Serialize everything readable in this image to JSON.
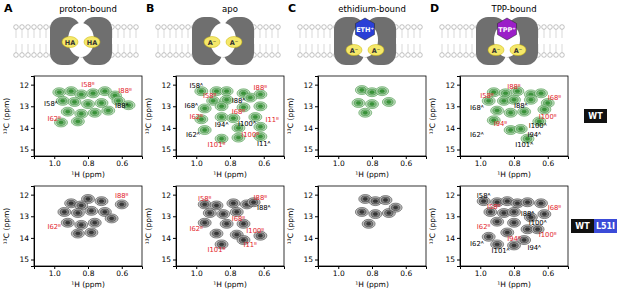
{
  "figure": {
    "columns": [
      {
        "letter": "A",
        "title": "proton-bound",
        "sites": [
          "HA",
          "HA"
        ]
      },
      {
        "letter": "B",
        "title": "apo",
        "sites": [
          "A⁻",
          "A⁻"
        ]
      },
      {
        "letter": "C",
        "title": "ethidium-bound",
        "ligand": "ETH⁺",
        "sites": [
          "A⁻",
          "A⁻"
        ]
      },
      {
        "letter": "D",
        "title": "TPP-bound",
        "ligand": "TPP⁺",
        "sites": [
          "A⁻",
          "A⁻"
        ]
      }
    ],
    "rows": [
      {
        "labels": [
          "WT"
        ]
      },
      {
        "labels": [
          "WT",
          "L51I"
        ]
      }
    ]
  },
  "chart_data": [
    {
      "type": "scatter",
      "xlabel": "¹H (ppm)",
      "ylabel": "¹³C (ppm)",
      "xlim": [
        1.12,
        0.48
      ],
      "ylim": [
        11.6,
        15.3
      ],
      "xticks": [
        {
          "value": 1,
          "label": "1.0"
        },
        0.8,
        0.6
      ],
      "yticks": [
        12,
        13,
        14,
        15
      ],
      "series": [
        {
          "color": "#2e8b2e",
          "marker": "contour",
          "x": [
            0.97,
            0.9,
            0.84,
            0.77,
            0.7,
            0.64,
            0.95,
            0.88,
            0.8,
            0.72,
            0.62,
            0.92,
            0.84,
            0.76,
            0.68,
            0.56,
            0.96,
            0.86
          ],
          "values": [
            12.35,
            12.3,
            12.45,
            12.4,
            12.3,
            12.5,
            12.75,
            12.8,
            12.9,
            12.85,
            12.75,
            13.25,
            13.35,
            13.3,
            13.2,
            12.95,
            13.75,
            13.7
          ]
        }
      ],
      "annotations": [
        {
          "text": "I58ᴮ",
          "x": 0.8,
          "y": 12.0,
          "color": "#e3242b"
        },
        {
          "text": "I88ᴮ",
          "x": 0.58,
          "y": 12.25,
          "color": "#e3242b"
        },
        {
          "text": "I58ᴬ",
          "x": 1.02,
          "y": 12.85,
          "color": "#000000"
        },
        {
          "text": "I88ᴬ",
          "x": 0.6,
          "y": 12.95,
          "color": "#000000"
        },
        {
          "text": "I62ᴮ",
          "x": 1.0,
          "y": 13.55,
          "color": "#e3242b"
        }
      ]
    },
    {
      "type": "scatter",
      "xlabel": "¹H (ppm)",
      "ylabel": "¹³C (ppm)",
      "xlim": [
        1.12,
        0.48
      ],
      "ylim": [
        11.6,
        15.3
      ],
      "xticks": [
        {
          "value": 1,
          "label": "1.0"
        },
        0.8,
        0.6
      ],
      "yticks": [
        12,
        13,
        14,
        15
      ],
      "series": [
        {
          "color": "#2e8b2e",
          "marker": "contour",
          "x": [
            0.97,
            0.88,
            0.82,
            0.72,
            0.62,
            0.9,
            0.82,
            0.68,
            0.95,
            0.85,
            0.72,
            0.62,
            0.97,
            0.85,
            0.78,
            0.65,
            0.75,
            0.62,
            0.95,
            0.75,
            0.85,
            0.62
          ],
          "values": [
            12.3,
            12.3,
            12.3,
            12.4,
            12.45,
            12.75,
            12.7,
            12.6,
            13.1,
            13.0,
            13.05,
            13.0,
            13.6,
            13.5,
            13.55,
            13.5,
            14.0,
            13.95,
            14.1,
            14.45,
            14.5,
            14.4
          ]
        }
      ],
      "annotations": [
        {
          "text": "I58ᴬ",
          "x": 1.0,
          "y": 12.05,
          "color": "#000000"
        },
        {
          "text": "I88ᴮ",
          "x": 0.62,
          "y": 12.15,
          "color": "#e3242b"
        },
        {
          "text": "I58ᴮ",
          "x": 0.92,
          "y": 12.5,
          "color": "#e3242b"
        },
        {
          "text": "I88ᴬ",
          "x": 0.75,
          "y": 12.75,
          "color": "#000000"
        },
        {
          "text": "I68ᴬ",
          "x": 1.03,
          "y": 12.95,
          "color": "#000000"
        },
        {
          "text": "I68ᴮ",
          "x": 0.75,
          "y": 13.25,
          "color": "#e3242b"
        },
        {
          "text": "I62ᴮ",
          "x": 1.0,
          "y": 13.45,
          "color": "#e3242b"
        },
        {
          "text": "I94ᴬ",
          "x": 0.85,
          "y": 13.85,
          "color": "#000000"
        },
        {
          "text": "I100ᴬ",
          "x": 0.7,
          "y": 13.8,
          "color": "#000000"
        },
        {
          "text": "I11ᴮ",
          "x": 0.55,
          "y": 13.6,
          "color": "#e3242b"
        },
        {
          "text": "I62ᴬ",
          "x": 1.02,
          "y": 14.3,
          "color": "#000000"
        },
        {
          "text": "I100ᴮ",
          "x": 0.68,
          "y": 14.3,
          "color": "#e3242b"
        },
        {
          "text": "I101ᴮ",
          "x": 0.88,
          "y": 14.75,
          "color": "#e3242b"
        },
        {
          "text": "I11ᴬ",
          "x": 0.6,
          "y": 14.7,
          "color": "#000000"
        }
      ]
    },
    {
      "type": "scatter",
      "xlabel": "¹H (ppm)",
      "ylabel": "¹³C (ppm)",
      "xlim": [
        1.12,
        0.48
      ],
      "ylim": [
        11.6,
        15.3
      ],
      "xticks": [
        {
          "value": 1,
          "label": "1.0"
        },
        0.8,
        0.6
      ],
      "yticks": [
        12,
        13,
        14,
        15
      ],
      "series": [
        {
          "color": "#2e8b2e",
          "marker": "contour",
          "x": [
            0.86,
            0.8,
            0.74,
            0.88,
            0.8,
            0.7,
            0.84
          ],
          "values": [
            12.25,
            12.35,
            12.3,
            12.85,
            12.9,
            12.8,
            13.3
          ]
        }
      ]
    },
    {
      "type": "scatter",
      "xlabel": "¹H (ppm)",
      "ylabel": "¹³C (ppm)",
      "xlim": [
        1.12,
        0.48
      ],
      "ylim": [
        11.6,
        15.3
      ],
      "xticks": [
        {
          "value": 1,
          "label": "1.0"
        },
        0.8,
        0.6
      ],
      "yticks": [
        12,
        13,
        14,
        15
      ],
      "series": [
        {
          "color": "#2e8b2e",
          "marker": "contour",
          "x": [
            0.92,
            0.85,
            0.78,
            0.7,
            0.64,
            0.6,
            0.95,
            0.86,
            0.8,
            0.7,
            0.62,
            0.9,
            0.82,
            0.74,
            0.65,
            0.92,
            0.82,
            0.76,
            0.72
          ],
          "values": [
            12.35,
            12.4,
            12.3,
            12.45,
            12.4,
            12.85,
            12.75,
            12.75,
            12.7,
            12.7,
            13.15,
            13.2,
            13.3,
            13.25,
            13.7,
            13.65,
            14.1,
            14.05,
            14.5
          ]
        }
      ],
      "annotations": [
        {
          "text": "I88ᴮ",
          "x": 0.8,
          "y": 12.1,
          "color": "#e3242b"
        },
        {
          "text": "I58ᴮ",
          "x": 0.96,
          "y": 12.5,
          "color": "#e3242b"
        },
        {
          "text": "I68ᴮ",
          "x": 0.56,
          "y": 12.6,
          "color": "#e3242b"
        },
        {
          "text": "I88ᴬ",
          "x": 0.76,
          "y": 12.95,
          "color": "#000000"
        },
        {
          "text": "I68ᴬ",
          "x": 1.02,
          "y": 13.05,
          "color": "#000000"
        },
        {
          "text": "I100ᴮ",
          "x": 0.6,
          "y": 13.45,
          "color": "#e3242b"
        },
        {
          "text": "I94ᴮ",
          "x": 0.88,
          "y": 13.8,
          "color": "#e3242b"
        },
        {
          "text": "I100ᴬ",
          "x": 0.66,
          "y": 13.9,
          "color": "#000000"
        },
        {
          "text": "I62ᴬ",
          "x": 1.02,
          "y": 14.3,
          "color": "#000000"
        },
        {
          "text": "I94ᴬ",
          "x": 0.68,
          "y": 14.3,
          "color": "#000000"
        },
        {
          "text": "I101ᴬ",
          "x": 0.74,
          "y": 14.75,
          "color": "#000000"
        }
      ]
    },
    {
      "type": "scatter",
      "xlabel": "¹H (ppm)",
      "ylabel": "¹³C (ppm)",
      "xlim": [
        1.12,
        0.48
      ],
      "ylim": [
        11.6,
        15.3
      ],
      "xticks": [
        {
          "value": 1,
          "label": "1.0"
        },
        0.8,
        0.6
      ],
      "yticks": [
        12,
        13,
        14,
        15
      ],
      "series": [
        {
          "color": "#2b2b2b",
          "marker": "contour",
          "x": [
            0.8,
            0.72,
            0.9,
            0.84,
            0.94,
            0.86,
            0.78,
            0.7,
            0.92,
            0.84,
            0.76,
            0.66,
            0.6,
            0.86,
            0.78
          ],
          "values": [
            12.2,
            12.3,
            12.4,
            12.5,
            12.8,
            12.85,
            12.75,
            12.8,
            13.3,
            13.4,
            13.3,
            13.1,
            12.45,
            13.8,
            13.75
          ]
        }
      ],
      "annotations": [
        {
          "text": "I88ᴮ",
          "x": 0.6,
          "y": 12.05,
          "color": "#e3242b"
        },
        {
          "text": "I62ᴮ",
          "x": 1.0,
          "y": 13.45,
          "color": "#e3242b"
        }
      ]
    },
    {
      "type": "scatter",
      "xlabel": "¹H (ppm)",
      "ylabel": "¹³C (ppm)",
      "xlim": [
        1.12,
        0.48
      ],
      "ylim": [
        11.6,
        15.3
      ],
      "xticks": [
        {
          "value": 1,
          "label": "1.0"
        },
        0.8,
        0.6
      ],
      "yticks": [
        12,
        13,
        14,
        15
      ],
      "series": [
        {
          "color": "#2b2b2b",
          "marker": "contour",
          "x": [
            0.95,
            0.88,
            0.78,
            0.7,
            0.66,
            0.92,
            0.84,
            0.76,
            0.95,
            0.82,
            0.72,
            0.88,
            0.76,
            0.62,
            0.85,
            0.72
          ],
          "values": [
            12.45,
            12.5,
            12.4,
            12.45,
            12.35,
            12.85,
            12.9,
            12.8,
            13.3,
            13.35,
            13.35,
            13.8,
            13.85,
            13.9,
            14.3,
            14.1
          ]
        }
      ],
      "annotations": [
        {
          "text": "I58ᴮ",
          "x": 0.95,
          "y": 12.2,
          "color": "#e3242b"
        },
        {
          "text": "I88ᴮ",
          "x": 0.62,
          "y": 12.15,
          "color": "#e3242b"
        },
        {
          "text": "I88ᴬ",
          "x": 0.6,
          "y": 12.6,
          "color": "#000000"
        },
        {
          "text": "I68ᴮ",
          "x": 0.75,
          "y": 13.1,
          "color": "#e3242b"
        },
        {
          "text": "I62ᴮ",
          "x": 1.0,
          "y": 13.55,
          "color": "#e3242b"
        },
        {
          "text": "I100ᴮ",
          "x": 0.65,
          "y": 13.65,
          "color": "#e3242b"
        },
        {
          "text": "I11ᴮ",
          "x": 0.68,
          "y": 14.3,
          "color": "#e3242b"
        },
        {
          "text": "I101ᴮ",
          "x": 0.88,
          "y": 14.55,
          "color": "#e3242b"
        }
      ]
    },
    {
      "type": "scatter",
      "xlabel": "¹H (ppm)",
      "ylabel": "¹³C (ppm)",
      "xlim": [
        1.12,
        0.48
      ],
      "ylim": [
        11.6,
        15.3
      ],
      "xticks": [
        {
          "value": 1,
          "label": "1.0"
        },
        0.8,
        0.6
      ],
      "yticks": [
        12,
        13,
        14,
        15
      ],
      "series": [
        {
          "color": "#2b2b2b",
          "marker": "contour",
          "x": [
            0.84,
            0.78,
            0.72,
            0.86,
            0.78,
            0.7,
            0.82,
            0.66
          ],
          "values": [
            12.2,
            12.3,
            12.25,
            12.8,
            12.9,
            12.85,
            13.35,
            12.6
          ]
        }
      ]
    },
    {
      "type": "scatter",
      "xlabel": "¹H (ppm)",
      "ylabel": "¹³C (ppm)",
      "xlim": [
        1.12,
        0.48
      ],
      "ylim": [
        11.6,
        15.3
      ],
      "xticks": [
        {
          "value": 1,
          "label": "1.0"
        },
        0.8,
        0.6
      ],
      "yticks": [
        12,
        13,
        14,
        15
      ],
      "series": [
        {
          "color": "#2b2b2b",
          "marker": "contour",
          "x": [
            0.98,
            0.9,
            0.84,
            0.78,
            0.72,
            0.64,
            0.94,
            0.86,
            0.8,
            0.7,
            0.62,
            0.9,
            0.8,
            0.72,
            0.66,
            0.95,
            0.84,
            0.74,
            0.9,
            0.8
          ],
          "values": [
            12.3,
            12.35,
            12.3,
            12.4,
            12.35,
            12.4,
            12.8,
            12.85,
            12.8,
            13.05,
            12.9,
            13.25,
            13.3,
            13.6,
            13.6,
            13.95,
            13.75,
            14.1,
            14.3,
            14.35
          ]
        }
      ],
      "annotations": [
        {
          "text": "I58ᴬ",
          "x": 0.98,
          "y": 12.05,
          "color": "#000000"
        },
        {
          "text": "I58ᴮ",
          "x": 0.92,
          "y": 12.55,
          "color": "#e3242b"
        },
        {
          "text": "I68ᴮ",
          "x": 0.56,
          "y": 12.6,
          "color": "#e3242b"
        },
        {
          "text": "I88ᴬ",
          "x": 0.72,
          "y": 12.85,
          "color": "#000000"
        },
        {
          "text": "I100ᴬ",
          "x": 0.66,
          "y": 13.3,
          "color": "#000000"
        },
        {
          "text": "I62ᴮ",
          "x": 0.98,
          "y": 13.45,
          "color": "#e3242b"
        },
        {
          "text": "I100ᴮ",
          "x": 0.6,
          "y": 13.85,
          "color": "#e3242b"
        },
        {
          "text": "I94ᴮ",
          "x": 0.8,
          "y": 14.05,
          "color": "#e3242b"
        },
        {
          "text": "I62ᴬ",
          "x": 1.02,
          "y": 14.25,
          "color": "#000000"
        },
        {
          "text": "I101ᴬ",
          "x": 0.88,
          "y": 14.6,
          "color": "#000000"
        },
        {
          "text": "I94ᴬ",
          "x": 0.68,
          "y": 14.45,
          "color": "#000000"
        }
      ]
    }
  ]
}
